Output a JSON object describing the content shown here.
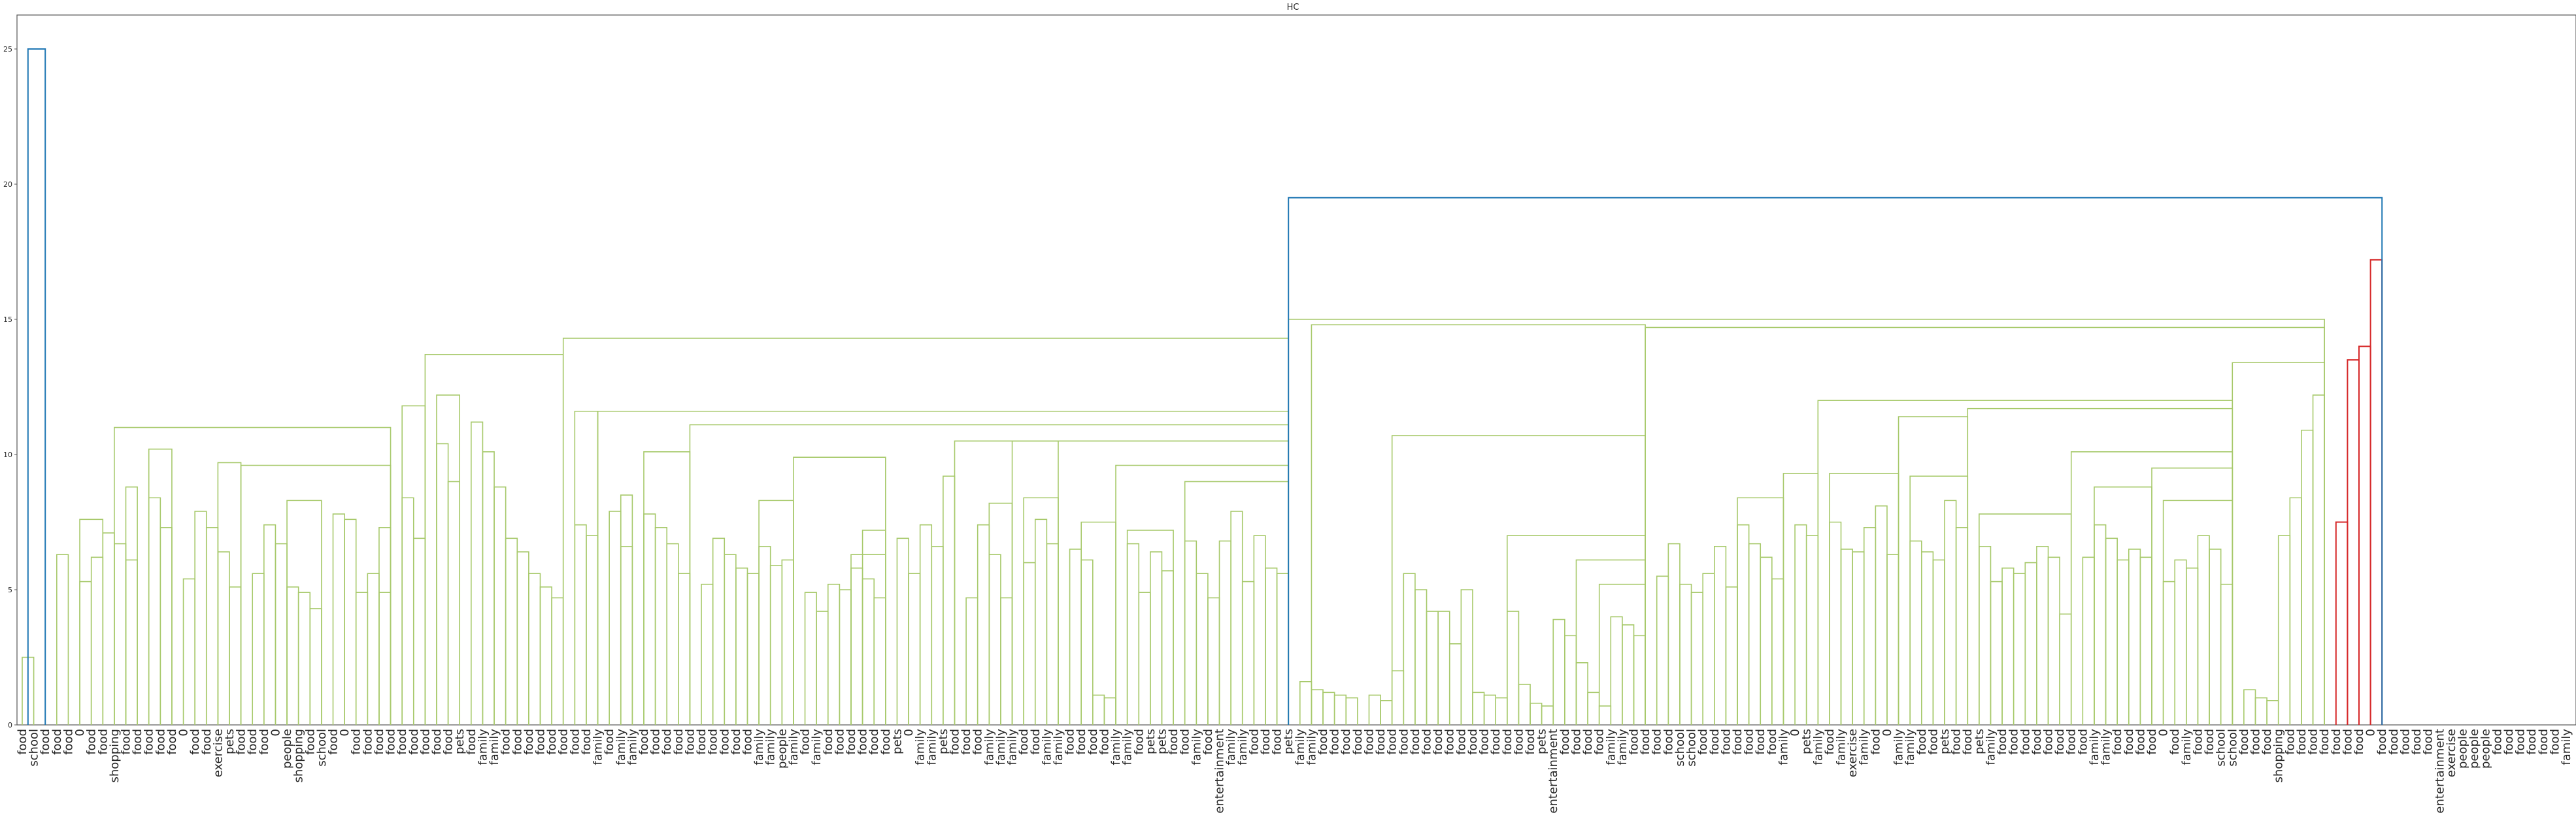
{
  "chart_data": {
    "type": "dendrogram",
    "title": "HC",
    "xlabel": "",
    "ylabel": "",
    "ylim": [
      0,
      26
    ],
    "yticks": [
      "0",
      "5",
      "10",
      "15",
      "20",
      "25"
    ],
    "grid": false,
    "colors": {
      "left_cluster": "#a7c96b",
      "right_cluster": "#d62728",
      "above_threshold": "#1f77b4",
      "frame": "#555555"
    },
    "leaf_labels": [
      "food",
      "school",
      "food",
      "food",
      "food",
      "0",
      "food",
      "food",
      "shopping",
      "food",
      "food",
      "food",
      "food",
      "food",
      "0",
      "food",
      "food",
      "exercise",
      "pets",
      "food",
      "food",
      "food",
      "0",
      "people",
      "shopping",
      "food",
      "school",
      "food",
      "0",
      "food",
      "food",
      "food",
      "food",
      "food",
      "food",
      "food",
      "food",
      "food",
      "pets",
      "food",
      "family",
      "family",
      "food",
      "food",
      "food",
      "food",
      "food",
      "food",
      "food",
      "food",
      "family",
      "food",
      "family",
      "family",
      "food",
      "food",
      "food",
      "food",
      "food",
      "food",
      "food",
      "food",
      "food",
      "food",
      "family",
      "family",
      "people",
      "family",
      "food",
      "family",
      "food",
      "food",
      "food",
      "food",
      "food",
      "food",
      "pets",
      "0",
      "family",
      "family",
      "pets",
      "food",
      "food",
      "food",
      "family",
      "family",
      "family",
      "food",
      "food",
      "family",
      "family",
      "food",
      "food",
      "food",
      "food",
      "family",
      "family",
      "food",
      "pets",
      "pets",
      "food",
      "food",
      "family",
      "food",
      "entertainment",
      "family",
      "family",
      "food",
      "food",
      "food",
      "pets",
      "family",
      "family",
      "food",
      "food",
      "food",
      "food",
      "food",
      "food",
      "food",
      "food",
      "food",
      "food",
      "food",
      "food",
      "food",
      "food",
      "food",
      "food",
      "food",
      "food",
      "food",
      "pets",
      "entertainment",
      "food",
      "food",
      "food",
      "food",
      "family",
      "family",
      "food",
      "food",
      "food",
      "food",
      "school",
      "school",
      "food",
      "food",
      "food",
      "food",
      "food",
      "food",
      "food",
      "family",
      "0",
      "pets",
      "family",
      "food",
      "family",
      "exercise",
      "family",
      "food",
      "0",
      "family",
      "family",
      "food",
      "food",
      "pets",
      "food",
      "food",
      "pets",
      "family",
      "food",
      "food",
      "food",
      "food",
      "food",
      "food",
      "food",
      "food",
      "family",
      "family",
      "food",
      "food",
      "food",
      "food",
      "0",
      "food",
      "family",
      "food",
      "food",
      "school",
      "school",
      "food",
      "food",
      "food",
      "shopping",
      "food",
      "food",
      "food",
      "food",
      "food",
      "food",
      "food",
      "0",
      "food",
      "food",
      "food",
      "food",
      "food",
      "entertainment",
      "exercise",
      "people",
      "people",
      "people",
      "food",
      "food",
      "food",
      "food",
      "food",
      "food",
      "family"
    ],
    "merges": [
      [
        0,
        1,
        2.5
      ],
      [
        -2,
        2,
        25
      ],
      [
        3,
        4,
        6.3
      ],
      [
        5,
        6,
        5.3
      ],
      [
        5,
        7,
        7.6
      ],
      [
        6,
        7,
        6.2
      ],
      [
        7,
        8,
        7.1
      ],
      [
        8,
        9,
        6.7
      ],
      [
        9,
        10,
        6.1
      ],
      [
        9,
        10,
        8.8
      ],
      [
        11,
        12,
        8.4
      ],
      [
        12,
        13,
        7.3
      ],
      [
        11,
        13,
        10.2
      ],
      [
        14,
        15,
        5.4
      ],
      [
        15,
        16,
        7.9
      ],
      [
        16,
        17,
        7.3
      ],
      [
        17,
        18,
        6.4
      ],
      [
        18,
        19,
        5.1
      ],
      [
        17,
        19,
        9.7
      ],
      [
        20,
        21,
        5.6
      ],
      [
        21,
        22,
        7.4
      ],
      [
        22,
        23,
        6.7
      ],
      [
        23,
        24,
        5.1
      ],
      [
        24,
        25,
        4.9
      ],
      [
        25,
        26,
        4.3
      ],
      [
        23,
        26,
        8.3
      ],
      [
        27,
        28,
        7.8
      ],
      [
        28,
        29,
        7.6
      ],
      [
        29,
        30,
        4.9
      ],
      [
        30,
        31,
        5.6
      ],
      [
        31,
        32,
        4.9
      ],
      [
        31,
        32,
        7.3
      ],
      [
        19,
        32,
        9.6
      ],
      [
        8,
        32,
        11
      ],
      [
        33,
        34,
        8.4
      ],
      [
        34,
        35,
        6.9
      ],
      [
        33,
        35,
        11.8
      ],
      [
        36,
        37,
        10.4
      ],
      [
        37,
        38,
        9
      ],
      [
        36,
        38,
        12.2
      ],
      [
        39,
        40,
        11.2
      ],
      [
        40,
        41,
        10.1
      ],
      [
        41,
        42,
        8.8
      ],
      [
        42,
        43,
        6.9
      ],
      [
        43,
        44,
        6.4
      ],
      [
        44,
        45,
        5.6
      ],
      [
        45,
        46,
        5.1
      ],
      [
        46,
        47,
        4.7
      ],
      [
        35,
        47,
        13.7
      ],
      [
        48,
        49,
        7.4
      ],
      [
        49,
        50,
        7
      ],
      [
        48,
        50,
        11.6
      ],
      [
        51,
        52,
        7.9
      ],
      [
        52,
        53,
        6.6
      ],
      [
        52,
        53,
        8.5
      ],
      [
        54,
        55,
        7.8
      ],
      [
        55,
        56,
        7.3
      ],
      [
        56,
        57,
        6.7
      ],
      [
        57,
        58,
        5.6
      ],
      [
        54,
        58,
        10.1
      ],
      [
        59,
        60,
        5.2
      ],
      [
        60,
        61,
        6.9
      ],
      [
        61,
        62,
        6.3
      ],
      [
        62,
        63,
        5.8
      ],
      [
        63,
        64,
        5.6
      ],
      [
        64,
        65,
        6.6
      ],
      [
        65,
        66,
        5.9
      ],
      [
        66,
        67,
        6.1
      ],
      [
        64,
        67,
        8.3
      ],
      [
        68,
        69,
        4.9
      ],
      [
        69,
        70,
        4.2
      ],
      [
        70,
        71,
        5.2
      ],
      [
        71,
        72,
        5
      ],
      [
        72,
        73,
        5.8
      ],
      [
        73,
        74,
        5.4
      ],
      [
        74,
        75,
        4.7
      ],
      [
        72,
        75,
        6.3
      ],
      [
        73,
        75,
        7.2
      ],
      [
        67,
        75,
        9.9
      ],
      [
        76,
        77,
        6.9
      ],
      [
        77,
        78,
        5.6
      ],
      [
        78,
        79,
        7.4
      ],
      [
        79,
        80,
        6.6
      ],
      [
        80,
        81,
        9.2
      ],
      [
        82,
        83,
        4.7
      ],
      [
        83,
        84,
        7.4
      ],
      [
        84,
        85,
        6.3
      ],
      [
        85,
        86,
        4.7
      ],
      [
        84,
        86,
        8.2
      ],
      [
        87,
        88,
        6
      ],
      [
        88,
        89,
        7.6
      ],
      [
        89,
        90,
        6.7
      ],
      [
        87,
        90,
        8.4
      ],
      [
        86,
        90,
        10.5
      ],
      [
        91,
        92,
        6.5
      ],
      [
        92,
        93,
        6.1
      ],
      [
        93,
        94,
        1.1
      ],
      [
        94,
        95,
        1
      ],
      [
        92,
        95,
        7.5
      ],
      [
        96,
        97,
        6.7
      ],
      [
        97,
        98,
        4.9
      ],
      [
        98,
        99,
        6.4
      ],
      [
        99,
        100,
        5.7
      ],
      [
        96,
        100,
        7.2
      ],
      [
        101,
        102,
        6.8
      ],
      [
        102,
        103,
        5.6
      ],
      [
        103,
        104,
        4.7
      ],
      [
        104,
        105,
        6.8
      ],
      [
        105,
        106,
        7.9
      ],
      [
        106,
        107,
        5.3
      ],
      [
        107,
        108,
        7
      ],
      [
        108,
        109,
        5.8
      ],
      [
        109,
        110,
        5.6
      ],
      [
        101,
        110,
        9
      ],
      [
        95,
        110,
        9.6
      ],
      [
        81,
        110,
        10.5
      ],
      [
        58,
        110,
        11.1
      ],
      [
        50,
        110,
        11.6
      ],
      [
        47,
        110,
        14.3
      ],
      [
        111,
        112,
        1.6
      ],
      [
        112,
        113,
        1.3
      ],
      [
        113,
        114,
        1.2
      ],
      [
        114,
        115,
        1.1
      ],
      [
        115,
        116,
        1
      ],
      [
        117,
        118,
        1.1
      ],
      [
        118,
        119,
        0.9
      ],
      [
        119,
        120,
        2
      ],
      [
        120,
        121,
        5.6
      ],
      [
        121,
        122,
        5
      ],
      [
        122,
        123,
        4.2
      ],
      [
        123,
        124,
        4.2
      ],
      [
        124,
        125,
        3
      ],
      [
        125,
        126,
        5
      ],
      [
        126,
        127,
        1.2
      ],
      [
        127,
        128,
        1.1
      ],
      [
        128,
        129,
        1
      ],
      [
        129,
        130,
        4.2
      ],
      [
        130,
        131,
        1.5
      ],
      [
        131,
        132,
        0.8
      ],
      [
        132,
        133,
        0.7
      ],
      [
        133,
        134,
        3.9
      ],
      [
        134,
        135,
        3.3
      ],
      [
        135,
        136,
        2.3
      ],
      [
        136,
        137,
        1.2
      ],
      [
        137,
        138,
        0.7
      ],
      [
        138,
        139,
        4
      ],
      [
        139,
        140,
        3.7
      ],
      [
        140,
        141,
        3.3
      ],
      [
        137,
        141,
        5.2
      ],
      [
        135,
        141,
        6.1
      ],
      [
        129,
        141,
        7
      ],
      [
        119,
        141,
        10.7
      ],
      [
        112,
        141,
        14.8
      ],
      [
        142,
        143,
        5.5
      ],
      [
        143,
        144,
        6.7
      ],
      [
        144,
        145,
        5.2
      ],
      [
        145,
        146,
        4.9
      ],
      [
        146,
        147,
        5.6
      ],
      [
        147,
        148,
        6.6
      ],
      [
        148,
        149,
        5.1
      ],
      [
        149,
        150,
        7.4
      ],
      [
        150,
        151,
        6.7
      ],
      [
        151,
        152,
        6.2
      ],
      [
        152,
        153,
        5.4
      ],
      [
        149,
        153,
        8.4
      ],
      [
        154,
        155,
        7.4
      ],
      [
        155,
        156,
        7
      ],
      [
        153,
        156,
        9.3
      ],
      [
        157,
        158,
        7.5
      ],
      [
        158,
        159,
        6.5
      ],
      [
        159,
        160,
        6.4
      ],
      [
        160,
        161,
        7.3
      ],
      [
        161,
        162,
        8.1
      ],
      [
        162,
        163,
        6.3
      ],
      [
        157,
        163,
        9.3
      ],
      [
        164,
        165,
        6.8
      ],
      [
        165,
        166,
        6.4
      ],
      [
        166,
        167,
        6.1
      ],
      [
        167,
        168,
        8.3
      ],
      [
        168,
        169,
        7.3
      ],
      [
        164,
        169,
        9.2
      ],
      [
        163,
        169,
        11.4
      ],
      [
        170,
        171,
        6.6
      ],
      [
        171,
        172,
        5.3
      ],
      [
        172,
        173,
        5.8
      ],
      [
        173,
        174,
        5.6
      ],
      [
        174,
        175,
        6
      ],
      [
        175,
        176,
        6.6
      ],
      [
        176,
        177,
        6.2
      ],
      [
        177,
        178,
        4.1
      ],
      [
        170,
        178,
        7.8
      ],
      [
        179,
        180,
        6.2
      ],
      [
        180,
        181,
        7.4
      ],
      [
        181,
        182,
        6.9
      ],
      [
        182,
        183,
        6.1
      ],
      [
        183,
        184,
        6.5
      ],
      [
        184,
        185,
        6.2
      ],
      [
        180,
        185,
        8.8
      ],
      [
        186,
        187,
        5.3
      ],
      [
        187,
        188,
        6.1
      ],
      [
        188,
        189,
        5.8
      ],
      [
        189,
        190,
        7
      ],
      [
        190,
        191,
        6.5
      ],
      [
        191,
        192,
        5.2
      ],
      [
        186,
        192,
        8.3
      ],
      [
        185,
        192,
        9.5
      ],
      [
        178,
        192,
        10.1
      ],
      [
        169,
        192,
        11.7
      ],
      [
        156,
        192,
        12
      ],
      [
        193,
        194,
        1.3
      ],
      [
        194,
        195,
        1
      ],
      [
        195,
        196,
        0.9
      ],
      [
        196,
        197,
        7
      ],
      [
        197,
        198,
        8.4
      ],
      [
        198,
        199,
        10.9
      ],
      [
        199,
        200,
        12.2
      ],
      [
        192,
        200,
        13.4
      ],
      [
        141,
        200,
        14.7
      ],
      [
        110,
        200,
        15
      ],
      [
        201,
        202,
        7.5
      ],
      [
        202,
        203,
        13.5
      ],
      [
        203,
        204,
        14
      ],
      [
        204,
        205,
        17.2
      ],
      [
        110,
        205,
        19.5
      ]
    ]
  }
}
